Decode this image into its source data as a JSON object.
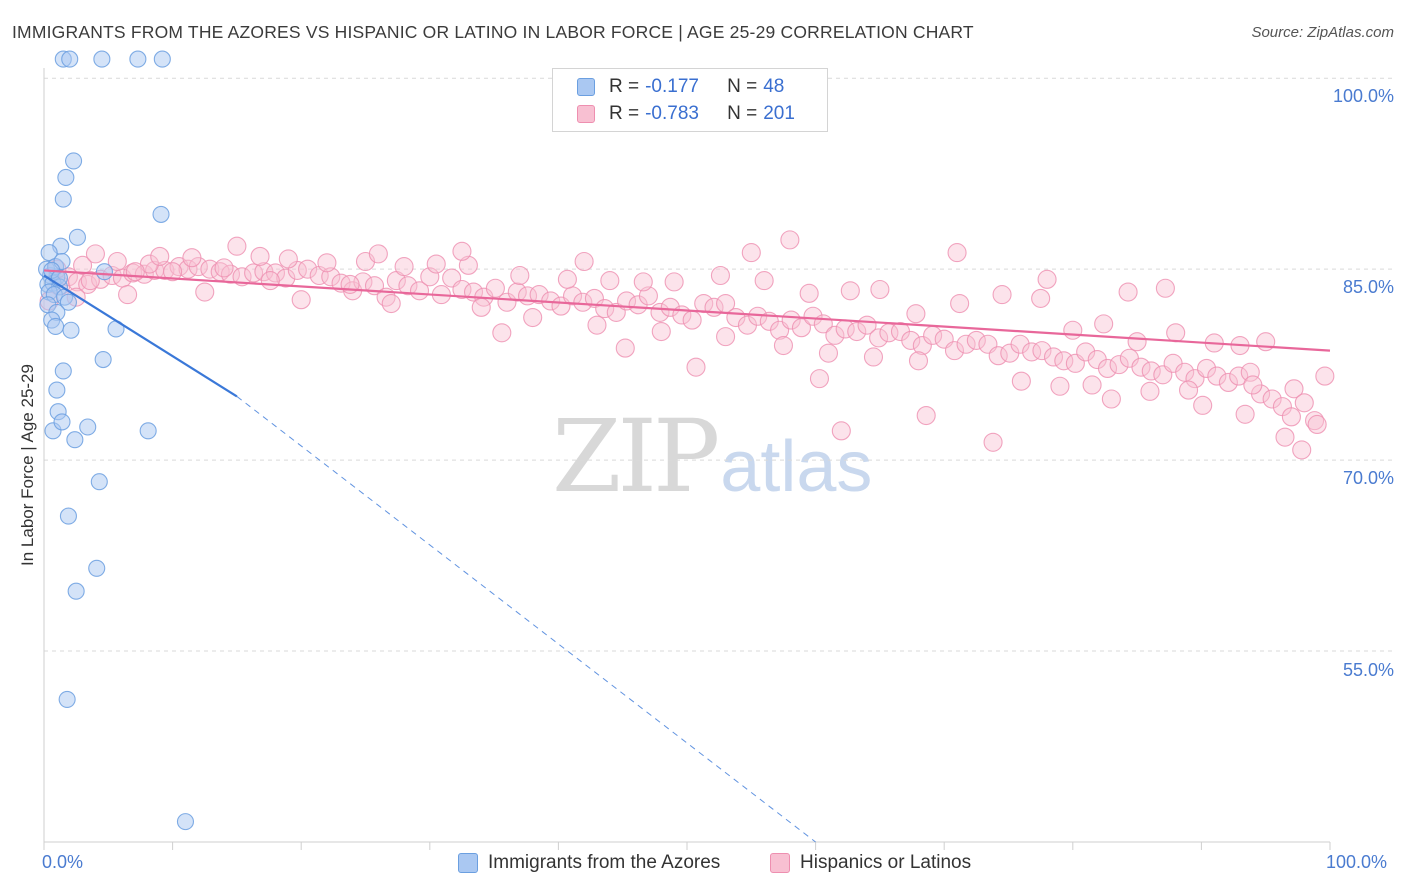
{
  "title": "IMMIGRANTS FROM THE AZORES VS HISPANIC OR LATINO IN LABOR FORCE | AGE 25-29 CORRELATION CHART",
  "source": "Source: ZipAtlas.com",
  "watermark": {
    "zip": "ZIP",
    "atlas": "atlas"
  },
  "legend": {
    "r_label": "R =",
    "n_label": "N =",
    "rows": [
      {
        "r": "-0.177",
        "n": "48",
        "fill": "#aac8f2",
        "stroke": "#6b9fe0"
      },
      {
        "r": "-0.783",
        "n": "201",
        "fill": "#f8c0d2",
        "stroke": "#ee8fb0"
      }
    ]
  },
  "bottom_legend": [
    {
      "label": "Immigrants from the Azores",
      "fill": "#aac8f2",
      "stroke": "#6b9fe0"
    },
    {
      "label": "Hispanics or Latinos",
      "fill": "#f8c0d2",
      "stroke": "#ee8fb0"
    }
  ],
  "chart_data": {
    "type": "scatter",
    "title": "IMMIGRANTS FROM THE AZORES VS HISPANIC OR LATINO IN LABOR FORCE | AGE 25-29 CORRELATION CHART",
    "xlabel": "",
    "ylabel": "In Labor Force | Age 25-29",
    "xlim": [
      0,
      100
    ],
    "ylim": [
      40,
      103
    ],
    "x_tick_labels": [
      "0.0%",
      "100.0%"
    ],
    "y_ticks": [
      55,
      70,
      85,
      100
    ],
    "y_tick_labels": [
      "55.0%",
      "70.0%",
      "85.0%",
      "100.0%"
    ],
    "grid": "horizontal dashed",
    "legend_position": "top-center",
    "colors": {
      "blue_fill": "#aac8f2",
      "blue_stroke": "#6b9fe0",
      "blue_line": "#3a78d8",
      "pink_fill": "#f8c0d2",
      "pink_stroke": "#ee8fb0",
      "pink_line": "#e8679a"
    },
    "series": [
      {
        "name": "Immigrants from the Azores",
        "r": -0.177,
        "n": 48,
        "trend": {
          "x": [
            0,
            15
          ],
          "y": [
            84.5,
            75.0
          ],
          "dashed_to": [
            60,
            40.0
          ]
        },
        "points": [
          [
            1.5,
            101.5
          ],
          [
            2.0,
            101.5
          ],
          [
            4.5,
            101.5
          ],
          [
            7.3,
            101.5
          ],
          [
            9.2,
            101.5
          ],
          [
            2.3,
            93.5
          ],
          [
            1.7,
            92.2
          ],
          [
            1.5,
            90.5
          ],
          [
            9.1,
            89.3
          ],
          [
            2.6,
            87.5
          ],
          [
            1.3,
            86.8
          ],
          [
            0.4,
            86.3
          ],
          [
            4.7,
            84.8
          ],
          [
            0.5,
            84.5
          ],
          [
            1.0,
            84.4
          ],
          [
            0.3,
            83.8
          ],
          [
            0.7,
            83.9
          ],
          [
            1.2,
            83.6
          ],
          [
            0.4,
            83.2
          ],
          [
            0.8,
            83.0
          ],
          [
            1.6,
            82.8
          ],
          [
            0.3,
            82.2
          ],
          [
            1.9,
            82.4
          ],
          [
            1.0,
            81.6
          ],
          [
            0.6,
            81.0
          ],
          [
            0.9,
            80.5
          ],
          [
            2.1,
            80.2
          ],
          [
            5.6,
            80.3
          ],
          [
            4.6,
            77.9
          ],
          [
            1.5,
            77.0
          ],
          [
            1.0,
            75.5
          ],
          [
            1.1,
            73.8
          ],
          [
            0.7,
            72.3
          ],
          [
            1.4,
            73.0
          ],
          [
            3.4,
            72.6
          ],
          [
            2.4,
            71.6
          ],
          [
            8.1,
            72.3
          ],
          [
            4.3,
            68.3
          ],
          [
            1.9,
            65.6
          ],
          [
            4.1,
            61.5
          ],
          [
            2.5,
            59.7
          ],
          [
            1.8,
            51.2
          ],
          [
            11.0,
            41.6
          ],
          [
            0.2,
            85.0
          ],
          [
            0.9,
            85.2
          ],
          [
            1.4,
            85.6
          ],
          [
            0.6,
            84.9
          ],
          [
            1.2,
            84.3
          ]
        ]
      },
      {
        "name": "Hispanics or Latinos",
        "r": -0.783,
        "n": 201,
        "trend": {
          "x": [
            0,
            100
          ],
          "y": [
            84.9,
            78.6
          ]
        },
        "points": [
          [
            0.4,
            82.5
          ],
          [
            1.3,
            83.7
          ],
          [
            1.9,
            84.4
          ],
          [
            2.6,
            84.0
          ],
          [
            3.4,
            83.8
          ],
          [
            4.4,
            84.2
          ],
          [
            5.3,
            84.5
          ],
          [
            6.1,
            84.3
          ],
          [
            6.9,
            84.7
          ],
          [
            7.8,
            84.6
          ],
          [
            8.6,
            84.9
          ],
          [
            9.4,
            84.9
          ],
          [
            10.5,
            85.2
          ],
          [
            11.2,
            85.0
          ],
          [
            12.0,
            85.2
          ],
          [
            12.9,
            85.0
          ],
          [
            13.7,
            84.8
          ],
          [
            14.5,
            84.6
          ],
          [
            15.4,
            84.4
          ],
          [
            16.3,
            84.7
          ],
          [
            17.1,
            84.8
          ],
          [
            18.0,
            84.7
          ],
          [
            18.8,
            84.3
          ],
          [
            19.7,
            84.9
          ],
          [
            20.5,
            85.0
          ],
          [
            21.4,
            84.5
          ],
          [
            22.3,
            84.4
          ],
          [
            23.1,
            83.9
          ],
          [
            24.0,
            83.3
          ],
          [
            24.8,
            84.0
          ],
          [
            25.7,
            83.7
          ],
          [
            26.6,
            82.8
          ],
          [
            27.4,
            84.1
          ],
          [
            28.3,
            83.7
          ],
          [
            29.2,
            83.3
          ],
          [
            30.0,
            84.4
          ],
          [
            30.9,
            83.0
          ],
          [
            31.7,
            84.3
          ],
          [
            32.5,
            83.4
          ],
          [
            33.4,
            83.2
          ],
          [
            34.2,
            82.8
          ],
          [
            35.1,
            83.5
          ],
          [
            36.0,
            82.4
          ],
          [
            36.8,
            83.2
          ],
          [
            37.6,
            82.9
          ],
          [
            38.5,
            83.0
          ],
          [
            39.4,
            82.5
          ],
          [
            40.2,
            82.1
          ],
          [
            41.1,
            82.9
          ],
          [
            41.9,
            82.4
          ],
          [
            42.8,
            82.7
          ],
          [
            43.6,
            81.9
          ],
          [
            44.5,
            81.6
          ],
          [
            45.3,
            82.5
          ],
          [
            46.2,
            82.2
          ],
          [
            47.0,
            82.9
          ],
          [
            47.9,
            81.6
          ],
          [
            48.7,
            82.0
          ],
          [
            49.6,
            81.4
          ],
          [
            50.4,
            81.0
          ],
          [
            51.3,
            82.3
          ],
          [
            52.1,
            82.0
          ],
          [
            53.0,
            82.3
          ],
          [
            53.8,
            81.2
          ],
          [
            54.7,
            80.6
          ],
          [
            55.5,
            81.3
          ],
          [
            56.4,
            80.9
          ],
          [
            57.2,
            80.2
          ],
          [
            58.1,
            81.0
          ],
          [
            58.9,
            80.4
          ],
          [
            59.8,
            81.3
          ],
          [
            60.6,
            80.7
          ],
          [
            61.5,
            79.8
          ],
          [
            62.3,
            80.3
          ],
          [
            63.2,
            80.1
          ],
          [
            64.0,
            80.6
          ],
          [
            64.9,
            79.6
          ],
          [
            65.7,
            80.0
          ],
          [
            66.6,
            80.1
          ],
          [
            67.4,
            79.4
          ],
          [
            68.3,
            79.0
          ],
          [
            69.1,
            79.8
          ],
          [
            70.0,
            79.5
          ],
          [
            70.8,
            78.6
          ],
          [
            71.7,
            79.1
          ],
          [
            72.5,
            79.4
          ],
          [
            73.4,
            79.1
          ],
          [
            74.2,
            78.2
          ],
          [
            75.1,
            78.4
          ],
          [
            75.9,
            79.1
          ],
          [
            76.8,
            78.5
          ],
          [
            77.6,
            78.6
          ],
          [
            78.5,
            78.1
          ],
          [
            79.3,
            77.8
          ],
          [
            80.2,
            77.6
          ],
          [
            81.0,
            78.5
          ],
          [
            81.9,
            77.9
          ],
          [
            82.7,
            77.2
          ],
          [
            83.6,
            77.5
          ],
          [
            84.4,
            78.0
          ],
          [
            85.3,
            77.3
          ],
          [
            86.1,
            77.0
          ],
          [
            87.0,
            76.7
          ],
          [
            87.8,
            77.6
          ],
          [
            88.7,
            76.9
          ],
          [
            89.5,
            76.4
          ],
          [
            90.4,
            77.2
          ],
          [
            91.2,
            76.6
          ],
          [
            92.1,
            76.1
          ],
          [
            92.9,
            76.6
          ],
          [
            93.8,
            76.9
          ],
          [
            94.6,
            75.2
          ],
          [
            95.5,
            74.8
          ],
          [
            96.3,
            74.2
          ],
          [
            97.2,
            75.6
          ],
          [
            98.0,
            74.5
          ],
          [
            98.8,
            73.1
          ],
          [
            99.6,
            76.6
          ],
          [
            1.0,
            85.0
          ],
          [
            3.0,
            85.3
          ],
          [
            5.7,
            85.6
          ],
          [
            8.2,
            85.4
          ],
          [
            10.0,
            84.8
          ],
          [
            14.0,
            85.1
          ],
          [
            16.8,
            86.0
          ],
          [
            19.0,
            85.8
          ],
          [
            22.0,
            85.5
          ],
          [
            25.0,
            85.6
          ],
          [
            28.0,
            85.2
          ],
          [
            30.5,
            85.4
          ],
          [
            33.0,
            85.3
          ],
          [
            37.0,
            84.5
          ],
          [
            40.7,
            84.2
          ],
          [
            44.0,
            84.1
          ],
          [
            46.6,
            84.0
          ],
          [
            49.0,
            84.0
          ],
          [
            52.6,
            84.5
          ],
          [
            56.0,
            84.1
          ],
          [
            59.5,
            83.1
          ],
          [
            62.7,
            83.3
          ],
          [
            65.0,
            83.4
          ],
          [
            67.8,
            81.5
          ],
          [
            71.2,
            82.3
          ],
          [
            74.5,
            83.0
          ],
          [
            77.5,
            82.7
          ],
          [
            80.0,
            80.2
          ],
          [
            82.4,
            80.7
          ],
          [
            85.0,
            79.3
          ],
          [
            88.0,
            80.0
          ],
          [
            91.0,
            79.2
          ],
          [
            93.0,
            79.0
          ],
          [
            95.0,
            79.3
          ],
          [
            4.0,
            86.2
          ],
          [
            9.0,
            86.0
          ],
          [
            15.0,
            86.8
          ],
          [
            26.0,
            86.2
          ],
          [
            32.5,
            86.4
          ],
          [
            42.0,
            85.6
          ],
          [
            55.0,
            86.3
          ],
          [
            58.0,
            87.3
          ],
          [
            71.0,
            86.3
          ],
          [
            78.0,
            84.2
          ],
          [
            84.3,
            83.2
          ],
          [
            87.2,
            83.5
          ],
          [
            2.5,
            82.8
          ],
          [
            6.5,
            83.0
          ],
          [
            12.5,
            83.2
          ],
          [
            20.0,
            82.6
          ],
          [
            27.0,
            82.3
          ],
          [
            34.0,
            82.0
          ],
          [
            38.0,
            81.2
          ],
          [
            43.0,
            80.6
          ],
          [
            48.0,
            80.1
          ],
          [
            53.0,
            79.7
          ],
          [
            57.5,
            79.0
          ],
          [
            61.0,
            78.4
          ],
          [
            64.5,
            78.1
          ],
          [
            68.0,
            77.8
          ],
          [
            76.0,
            76.2
          ],
          [
            79.0,
            75.8
          ],
          [
            83.0,
            74.8
          ],
          [
            86.0,
            75.4
          ],
          [
            89.0,
            75.5
          ],
          [
            94.0,
            75.9
          ],
          [
            97.0,
            73.4
          ],
          [
            99.0,
            72.8
          ],
          [
            96.5,
            71.8
          ],
          [
            62.0,
            72.3
          ],
          [
            73.8,
            71.4
          ],
          [
            68.6,
            73.5
          ],
          [
            90.1,
            74.3
          ],
          [
            97.8,
            70.8
          ],
          [
            93.4,
            73.6
          ],
          [
            81.5,
            75.9
          ],
          [
            60.3,
            76.4
          ],
          [
            50.7,
            77.3
          ],
          [
            45.2,
            78.8
          ],
          [
            35.6,
            80.0
          ],
          [
            23.8,
            83.8
          ],
          [
            17.6,
            84.1
          ],
          [
            11.5,
            85.9
          ],
          [
            7.1,
            84.8
          ],
          [
            3.6,
            84.1
          ]
        ]
      }
    ]
  }
}
